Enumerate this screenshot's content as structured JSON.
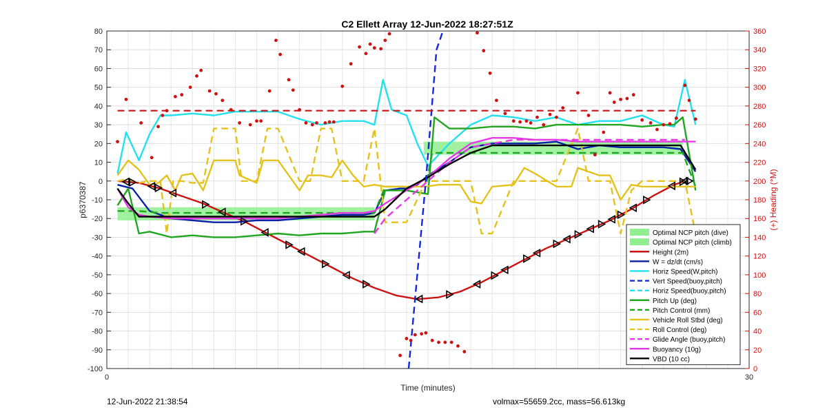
{
  "chart_data": {
    "type": "line",
    "title": "C2 Ellett Array 12-Jun-2022 18:27:51Z",
    "xlabel": "Time (minutes)",
    "ylabel_left": "p6370387",
    "ylabel_right": "(+) Heading (°M)",
    "xlim": [
      0,
      30
    ],
    "ylim_left": [
      -100,
      80
    ],
    "ylim_right": [
      0,
      360
    ],
    "x_ticks": [
      "0",
      "30"
    ],
    "y_ticks_left": [
      "80",
      "70",
      "60",
      "50",
      "40",
      "30",
      "20",
      "10",
      "0",
      "-10",
      "-20",
      "-30",
      "-40",
      "-50",
      "-60",
      "-70",
      "-80",
      "-90",
      "-100"
    ],
    "y_ticks_right": [
      "360",
      "340",
      "320",
      "300",
      "280",
      "260",
      "240",
      "220",
      "200",
      "180",
      "160",
      "140",
      "120",
      "100",
      "80",
      "60",
      "40",
      "20",
      "0"
    ],
    "grid": true,
    "legend_position": "lower-right",
    "bands": [
      {
        "name": "Optimal NCP pitch (dive)",
        "x": [
          0.5,
          12.5
        ],
        "y": [
          -21,
          -14
        ],
        "color": "#90ee90"
      },
      {
        "name": "Optimal NCP pitch (climb)",
        "x": [
          14.8,
          26.9
        ],
        "y": [
          14,
          21
        ],
        "color": "#90ee90"
      }
    ],
    "series": [
      {
        "name": "Height (2m)",
        "color": "#cc1111",
        "style": "solid",
        "x": [
          0.5,
          1.5,
          2.5,
          3.5,
          4.5,
          5.5,
          6.5,
          7.5,
          8.5,
          9.5,
          10.5,
          11.5,
          12.5,
          13.5,
          14.5,
          15.5,
          16.5,
          17.5,
          18.5,
          19.5,
          20.5,
          21.5,
          22.5,
          23.5,
          24.5,
          25.5,
          26.5,
          27.0
        ],
        "y": [
          0,
          -1,
          -4,
          -8,
          -12,
          -17,
          -22,
          -28,
          -34,
          -40,
          -46,
          -52,
          -57,
          -61,
          -63,
          -62,
          -59,
          -54,
          -48,
          -42,
          -36,
          -31,
          -26,
          -21,
          -15,
          -8,
          -2,
          0
        ]
      },
      {
        "name": "W = dz/dt (cm/s)",
        "color": "#0a1fa8",
        "style": "solid",
        "x": [
          0.5,
          1.2,
          2,
          3,
          4,
          5,
          6,
          7,
          8,
          9,
          10,
          11,
          12,
          12.5,
          13,
          13.7,
          14.1,
          14.5,
          15,
          16,
          17,
          18,
          19,
          20,
          21,
          22,
          23,
          24,
          25,
          26,
          26.8,
          27.5
        ],
        "y": [
          -2,
          -4,
          -16,
          -20,
          -21,
          -22,
          -22,
          -21,
          -21,
          -20,
          -19,
          -18,
          -18,
          -17,
          -5,
          -4,
          -4,
          -2,
          3,
          10,
          18,
          20,
          20,
          20,
          21,
          17,
          19,
          18,
          18,
          18,
          17,
          5
        ]
      },
      {
        "name": "Horiz Speed(W,pitch)",
        "color": "#22e0ee",
        "style": "solid",
        "x": [
          0.5,
          0.9,
          1.5,
          2,
          2.5,
          3,
          4,
          5,
          6,
          7,
          8,
          9,
          10,
          11,
          12,
          12.5,
          12.9,
          13.3,
          14,
          14.5,
          15,
          16,
          17,
          18,
          19,
          20,
          21,
          22,
          23,
          24,
          25,
          26,
          26.5,
          27,
          27.5
        ],
        "y": [
          4,
          26,
          11,
          25,
          35,
          35,
          36,
          35,
          37,
          37,
          37,
          33,
          30,
          32,
          32,
          30,
          54,
          38,
          35,
          20,
          8,
          20,
          30,
          35,
          34,
          32,
          34,
          30,
          32,
          32,
          35,
          30,
          29,
          54,
          30
        ]
      },
      {
        "name": "Pitch Up (deg)",
        "color": "#1fa51f",
        "style": "solid",
        "x": [
          0.5,
          1,
          1.5,
          2,
          3,
          4,
          5,
          6,
          7,
          8,
          9,
          10,
          11,
          12,
          12.5,
          13,
          14,
          15,
          15.3,
          16,
          17,
          18,
          19,
          20,
          21,
          22,
          23,
          24,
          25,
          26,
          26.5,
          26.9,
          27.5
        ],
        "y": [
          -13,
          -4,
          -28,
          -27,
          -30,
          -29,
          -30,
          -30,
          -29,
          -28,
          -29,
          -28,
          -28,
          -27,
          -27,
          -5,
          -5,
          -7,
          34,
          28,
          28,
          29,
          29,
          28,
          30,
          30,
          30,
          30,
          29,
          30,
          30,
          34,
          -5
        ]
      },
      {
        "name": "Pitch Control (mm)",
        "color": "#1fa51f",
        "style": "dashed",
        "x": [
          0.5,
          1.5,
          2.5,
          12.5,
          13,
          14.9,
          15.2,
          26.9,
          27.5
        ],
        "y": [
          -16,
          -16,
          -17,
          -17,
          -3,
          -3,
          15,
          15,
          -3
        ]
      },
      {
        "name": "Vehicle Roll Stbd (deg)",
        "color": "#e3c21b",
        "style": "solid",
        "x": [
          0.5,
          1,
          1.5,
          2,
          2.4,
          2.8,
          3.2,
          3.5,
          4,
          4.5,
          5,
          6,
          6.2,
          7,
          7.3,
          8,
          9,
          9.4,
          10,
          10.5,
          11,
          11.5,
          12,
          12.5,
          13,
          14,
          14.9,
          15.5,
          16.5,
          17,
          17.5,
          18,
          19,
          19.5,
          20,
          21,
          21.7,
          22,
          23,
          23.5,
          24,
          24.5,
          25,
          25.5,
          26,
          27,
          27.5
        ],
        "y": [
          3,
          11,
          6,
          -2,
          -1,
          3,
          -5,
          3,
          4,
          -5,
          11,
          11,
          3,
          -1,
          11,
          11,
          -5,
          3,
          3,
          2,
          11,
          3,
          -3,
          -2,
          -3,
          -3,
          -3,
          -2,
          -2,
          -11,
          -12,
          -3,
          -2,
          7,
          4,
          -3,
          -3,
          7,
          3,
          3,
          -10,
          -2,
          -3,
          -3,
          -3,
          -3,
          -3
        ]
      },
      {
        "name": "Roll Control (deg)",
        "color": "#e3c21b",
        "style": "dashed",
        "x": [
          0.5,
          1,
          1.5,
          2,
          2.5,
          2.8,
          3.1,
          3.5,
          4,
          4.5,
          5,
          6,
          6.3,
          7,
          7.5,
          8,
          9,
          9.5,
          10,
          10.5,
          11,
          11.5,
          12,
          12.5,
          13,
          14,
          14.9,
          15.5,
          17,
          17.5,
          18,
          19,
          20,
          21,
          22,
          22.5,
          23,
          23.5,
          24,
          24.5,
          25,
          26,
          27,
          27.5
        ],
        "y": [
          0,
          1,
          -1,
          0,
          0,
          -28,
          0,
          0,
          -1,
          -1,
          28,
          28,
          0,
          0,
          28,
          28,
          0,
          0,
          28,
          28,
          0,
          0,
          0,
          28,
          -22,
          -22,
          0,
          0,
          0,
          -28,
          -28,
          0,
          0,
          0,
          28,
          0,
          0,
          0,
          -28,
          -5,
          0,
          0,
          0,
          -28
        ]
      },
      {
        "name": "Glide Angle (buoy,pitch)",
        "color": "#e639e6",
        "style": "dashed",
        "x": [
          12.5,
          13,
          14,
          15,
          16,
          17,
          18,
          19,
          20,
          21,
          22,
          23,
          24,
          25,
          26,
          27
        ],
        "y": [
          -28,
          -20,
          -10,
          0,
          10,
          18,
          20,
          22,
          22,
          22,
          22,
          22,
          22,
          22,
          22,
          22
        ]
      },
      {
        "name": "Buoyancy (10g)",
        "color": "#e639e6",
        "style": "solid",
        "x": [
          0.5,
          1,
          1.5,
          2,
          3,
          4,
          5,
          6,
          7,
          8,
          9,
          10,
          11,
          12,
          12.5,
          13,
          14,
          15,
          16,
          17,
          18,
          19,
          20,
          21,
          22,
          23,
          24,
          25,
          26,
          27.5
        ],
        "y": [
          -4,
          -14,
          -18,
          -19,
          -20,
          -20,
          -20,
          -20,
          -20,
          -20,
          -19,
          -18,
          -17,
          -17,
          -16,
          -12,
          -5,
          2,
          12,
          20,
          23,
          23,
          22,
          22,
          21,
          21,
          21,
          21,
          21,
          21
        ]
      },
      {
        "name": "VBD (10 cc)",
        "color": "#000000",
        "style": "solid",
        "x": [
          0.5,
          1,
          1.5,
          2,
          12.5,
          13,
          14,
          15,
          16,
          17,
          18,
          20,
          22,
          24,
          26,
          26.8,
          27.5
        ],
        "y": [
          -4,
          -12,
          -19,
          -19,
          -19,
          -15,
          -4,
          2,
          9,
          15,
          19,
          19,
          19,
          19,
          19,
          19,
          6
        ]
      },
      {
        "name": "Vert Speed(buoy,pitch)",
        "color": "#1528d8",
        "style": "dashed",
        "x": [
          14.1,
          14.9,
          15.4,
          15.7
        ],
        "y": [
          -100,
          0,
          70,
          80
        ]
      },
      {
        "name": "Horiz Speed(buoy,pitch)",
        "color": "#22e0ee",
        "style": "dashed",
        "x": [],
        "y": []
      }
    ],
    "heading": {
      "name": "Heading",
      "color": "#cc1111",
      "axis": "right",
      "mean": 275,
      "points": [
        [
          0.5,
          242
        ],
        [
          0.9,
          287
        ],
        [
          1.6,
          262
        ],
        [
          2.1,
          225
        ],
        [
          2.4,
          258
        ],
        [
          2.6,
          270
        ],
        [
          2.8,
          275
        ],
        [
          3.2,
          290
        ],
        [
          3.5,
          292
        ],
        [
          3.9,
          300
        ],
        [
          4.2,
          312
        ],
        [
          4.4,
          318
        ],
        [
          4.8,
          296
        ],
        [
          5.1,
          293
        ],
        [
          5.4,
          286
        ],
        [
          5.8,
          276
        ],
        [
          6.2,
          262
        ],
        [
          6.7,
          260
        ],
        [
          7.0,
          264
        ],
        [
          7.2,
          264
        ],
        [
          7.6,
          296
        ],
        [
          7.9,
          350
        ],
        [
          8.1,
          335
        ],
        [
          8.5,
          308
        ],
        [
          8.7,
          297
        ],
        [
          9.0,
          276
        ],
        [
          9.3,
          262
        ],
        [
          9.6,
          260
        ],
        [
          9.8,
          262
        ],
        [
          10.2,
          262
        ],
        [
          10.4,
          263
        ],
        [
          10.6,
          263
        ],
        [
          11.0,
          301
        ],
        [
          11.4,
          325
        ],
        [
          11.8,
          343
        ],
        [
          12.1,
          336
        ],
        [
          12.3,
          346
        ],
        [
          12.5,
          342
        ],
        [
          12.8,
          341
        ],
        [
          13.0,
          350
        ],
        [
          13.2,
          357
        ],
        [
          13.7,
          14
        ],
        [
          14.0,
          32
        ],
        [
          14.2,
          30
        ],
        [
          14.4,
          36
        ],
        [
          14.7,
          37
        ],
        [
          14.9,
          38
        ],
        [
          15.2,
          30
        ],
        [
          15.5,
          28
        ],
        [
          15.8,
          28
        ],
        [
          16.1,
          28
        ],
        [
          16.4,
          24
        ],
        [
          16.7,
          18
        ],
        [
          17.3,
          358
        ],
        [
          17.6,
          339
        ],
        [
          17.9,
          315
        ],
        [
          18.2,
          286
        ],
        [
          18.6,
          272
        ],
        [
          19.0,
          264
        ],
        [
          19.3,
          263
        ],
        [
          19.6,
          264
        ],
        [
          19.8,
          262
        ],
        [
          20.1,
          268
        ],
        [
          20.4,
          260
        ],
        [
          20.7,
          271
        ],
        [
          21.0,
          268
        ],
        [
          21.3,
          278
        ],
        [
          22.0,
          294
        ],
        [
          22.5,
          270
        ],
        [
          22.8,
          228
        ],
        [
          23.2,
          252
        ],
        [
          23.5,
          294
        ],
        [
          23.7,
          284
        ],
        [
          24.0,
          287
        ],
        [
          24.3,
          288
        ],
        [
          24.6,
          292
        ],
        [
          25.0,
          265
        ],
        [
          25.4,
          262
        ],
        [
          25.7,
          255
        ],
        [
          26.0,
          260
        ],
        [
          26.3,
          261
        ],
        [
          26.6,
          267
        ],
        [
          27.0,
          302
        ],
        [
          27.2,
          286
        ],
        [
          27.5,
          266
        ]
      ]
    },
    "direction_markers": [
      0.9,
      1.2,
      2.1,
      2.4,
      3.1,
      4.6,
      5.4,
      6.4,
      7.4,
      8.5,
      9.1,
      10.2,
      11.2,
      12.1,
      14.6,
      16.0,
      17.3,
      18.1,
      18.6,
      19.6,
      20.1,
      21.0,
      21.5,
      22.0,
      22.6,
      23.1,
      23.6,
      24.0,
      24.6,
      25.2,
      26.4,
      26.9,
      27.0,
      27.2
    ]
  },
  "footer": {
    "left": "12-Jun-2022 21:38:54",
    "right": "volmax=55659.2cc, mass=56.613kg"
  }
}
